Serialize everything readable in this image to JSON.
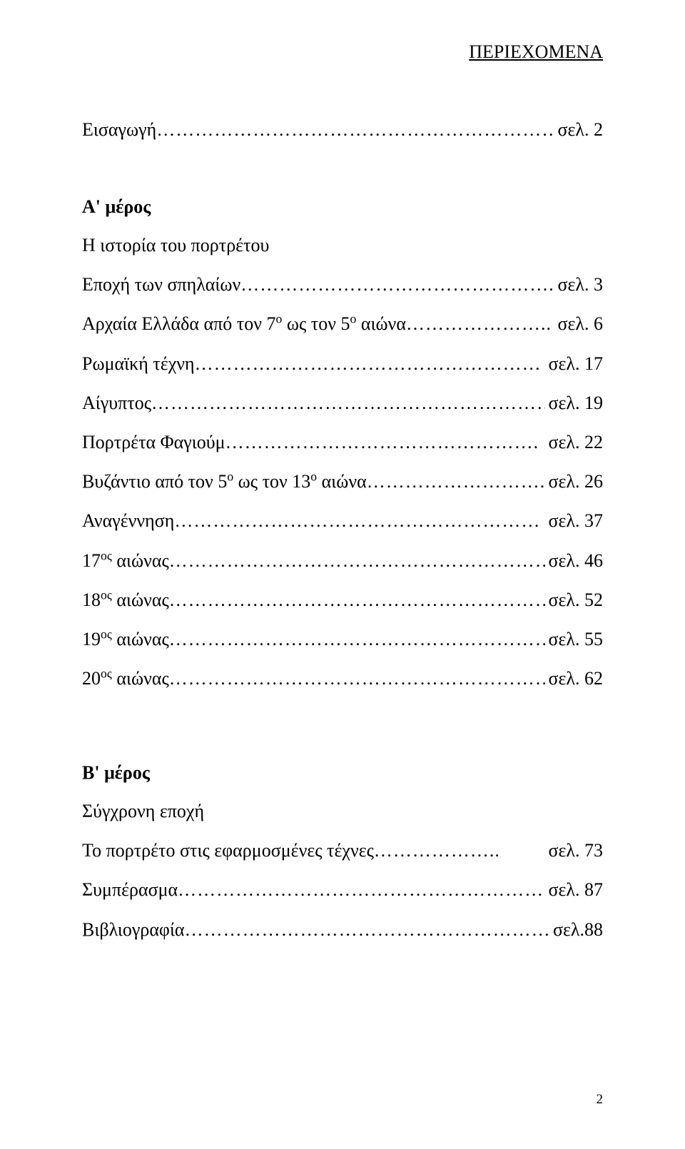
{
  "title": "ΠΕΡΙΕΧΟΜΕΝΑ",
  "intro": {
    "label": "Εισαγωγή",
    "leader": "…………………………………………………………",
    "page": "σελ. 2"
  },
  "partA": {
    "heading": "A' μέρος",
    "subheading": "Η ιστορία του πορτρέτου",
    "rows": [
      {
        "label": "Εποχή των σπηλαίων",
        "leader": "…………………………………………..",
        "page": "σελ. 3"
      },
      {
        "label_pre": "Αρχαία Ελλάδα από τον 7",
        "sup1": "ο",
        "label_mid": " ως τον 5",
        "sup2": "ο",
        "label_post": " αιώνα",
        "leader": "…………………..",
        "page": "σελ. 6"
      },
      {
        "label": "Ρωμαϊκή τέχνη",
        "leader": "………………………………………………",
        "page": "σελ. 17"
      },
      {
        "label": "Αίγυπτος",
        "leader": "……………………………………………………….",
        "page": "σελ. 19"
      },
      {
        "label": "Πορτρέτα Φαγιούμ",
        "leader": "………………………………………….",
        "page": "σελ. 22"
      },
      {
        "label_pre": "Βυζάντιο από τον 5",
        "sup1": "ο",
        "label_mid": " ως τον 13",
        "sup2": "ο",
        "label_post": " αιώνα",
        "leader": "………………………..",
        "page": "σελ. 26"
      },
      {
        "label": "Αναγέννηση",
        "leader": "…………………………………………………",
        "page": "σελ. 37"
      },
      {
        "label_pre": "17",
        "sup1": "ος",
        "label_post": " αιώνας",
        "leader": "……………………………………………………….",
        "page": "σελ. 46"
      },
      {
        "label_pre": "18",
        "sup1": "ος",
        "label_post": " αιώνας",
        "leader": "……………………………………………………….",
        "page": "σελ. 52"
      },
      {
        "label_pre": "19",
        "sup1": "ος",
        "label_post": " αιώνας",
        "leader": "……………………………………………………….",
        "page": "σελ. 55"
      },
      {
        "label_pre": "20",
        "sup1": "ος",
        "label_post": " αιώνας",
        "leader": "……………………………………………………….",
        "page": "σελ. 62"
      }
    ]
  },
  "partB": {
    "heading": "Β' μέρος",
    "subheading": "Σύγχρονη εποχή",
    "rows": [
      {
        "label": "Το πορτρέτο στις εφαρμοσμένες τέχνες",
        "leader": "………………..",
        "page": "σελ. 73"
      },
      {
        "label": "Συμπέρασμα",
        "leader": "…………………………………………………..",
        "page": "σελ. 87"
      },
      {
        "label": "Βιβλιογραφία",
        "leader": "…………………………………………………..",
        "page": "σελ.88"
      }
    ]
  },
  "footerPage": "2"
}
